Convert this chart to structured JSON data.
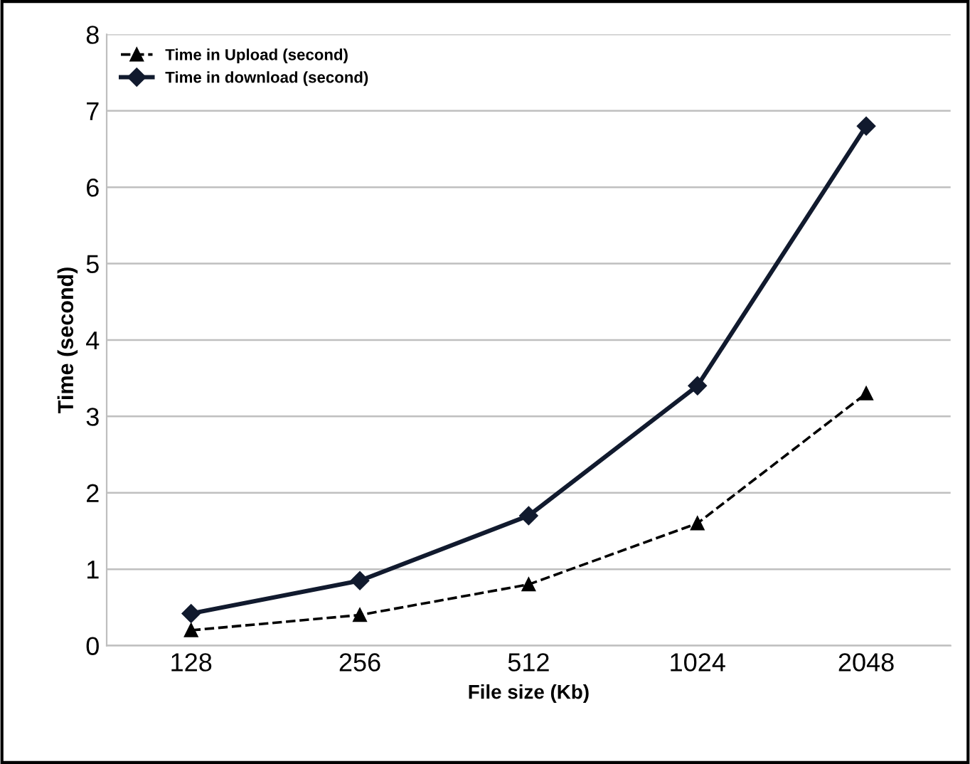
{
  "chart_data": {
    "type": "line",
    "xlabel": "File size (Kb)",
    "ylabel": "Time (second)",
    "categories": [
      "128",
      "256",
      "512",
      "1024",
      "2048"
    ],
    "series": [
      {
        "name": "Time in Upload (second)",
        "color": "#000000",
        "values": [
          0.2,
          0.4,
          0.8,
          1.6,
          3.3
        ],
        "marker": "triangle",
        "line_style": "dashed"
      },
      {
        "name": "Time in download (second)",
        "color": "#111a2e",
        "values": [
          0.42,
          0.85,
          1.7,
          3.4,
          6.8
        ],
        "marker": "diamond",
        "line_style": "solid"
      }
    ],
    "ylim": [
      0,
      8
    ],
    "yticks": [
      0,
      1,
      2,
      3,
      4,
      5,
      6,
      7,
      8
    ],
    "grid": "y",
    "legend": "top left"
  }
}
